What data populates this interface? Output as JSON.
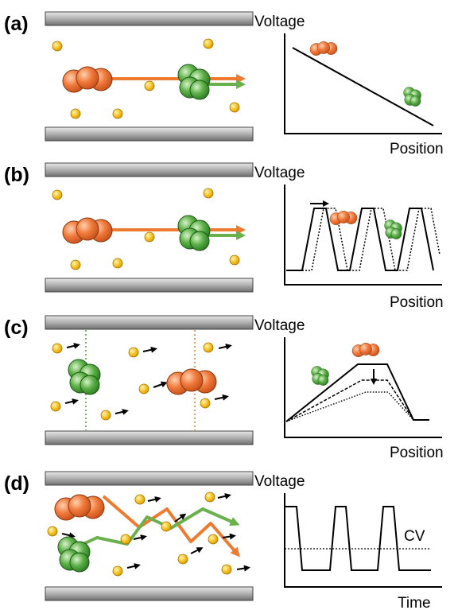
{
  "panels": [
    {
      "label": "(a)",
      "y_axis": "Voltage",
      "x_axis": "Position"
    },
    {
      "label": "(b)",
      "y_axis": "Voltage",
      "x_axis": "Position"
    },
    {
      "label": "(c)",
      "y_axis": "Voltage",
      "x_axis": "Position"
    },
    {
      "label": "(d)",
      "y_axis": "Voltage",
      "x_axis": "Time",
      "annotation": "CV"
    }
  ]
}
